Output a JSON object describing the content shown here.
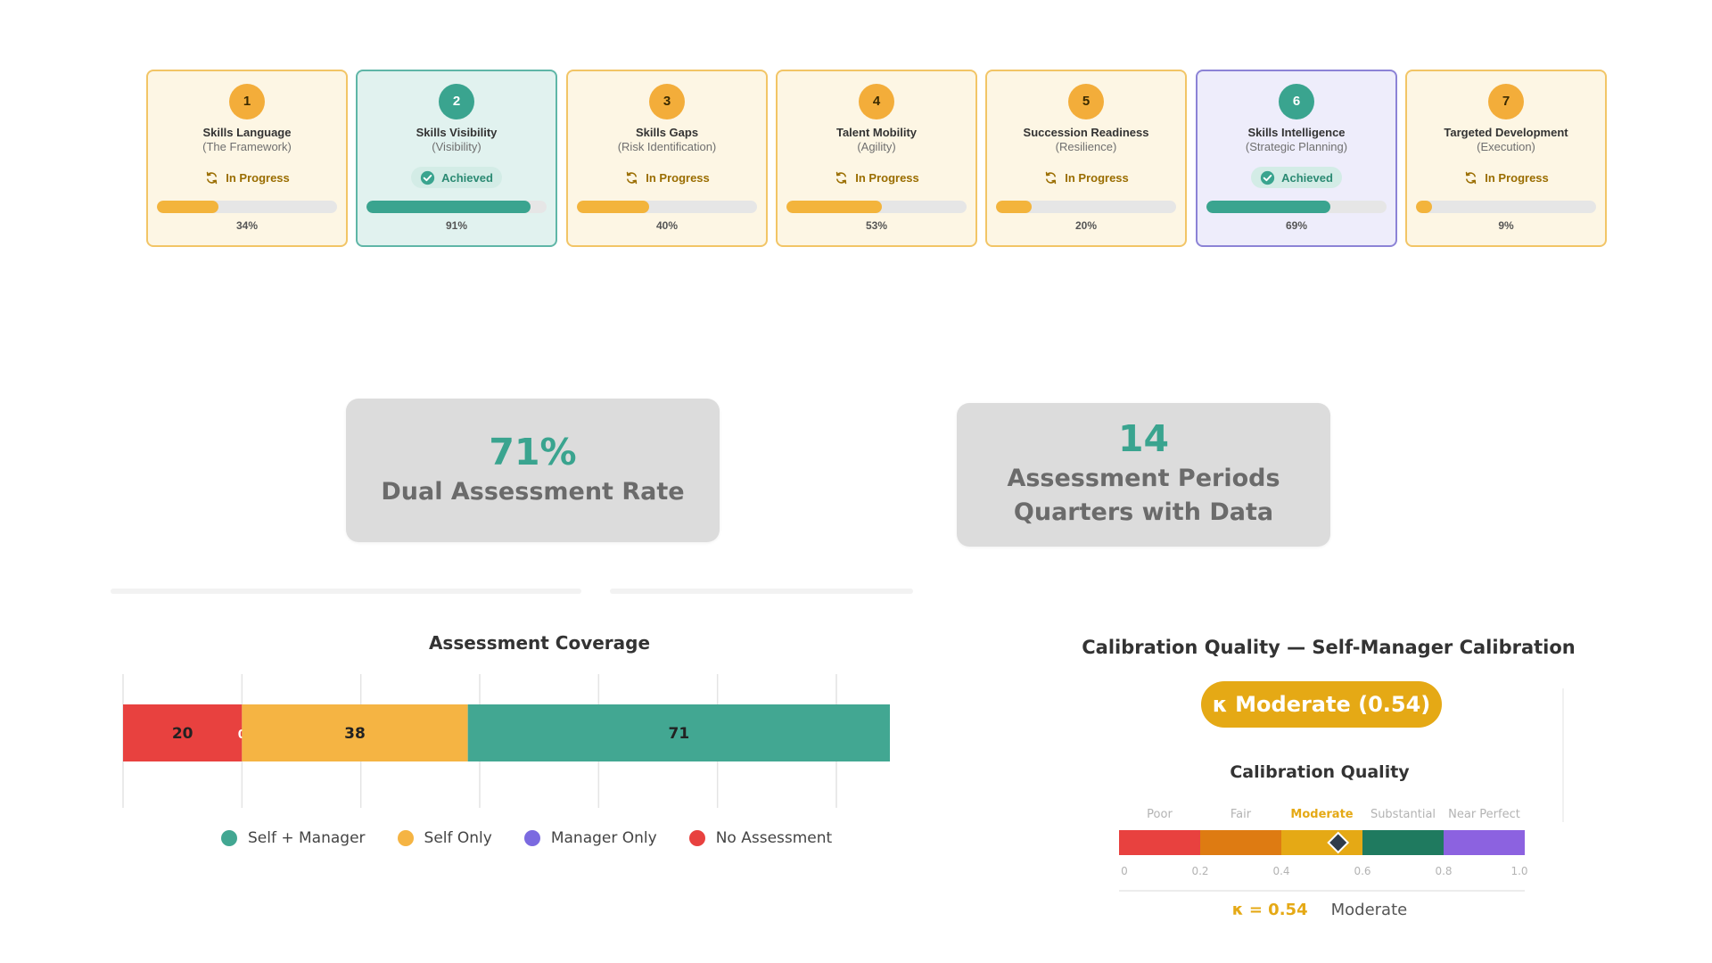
{
  "stages": [
    {
      "number": "1",
      "title": "Skills Language",
      "subtitle": "(The Framework)",
      "status": "In Progress",
      "progress": 34,
      "progress_label": "34%",
      "state": "in-progress"
    },
    {
      "number": "2",
      "title": "Skills Visibility",
      "subtitle": "(Visibility)",
      "status": "Achieved",
      "progress": 91,
      "progress_label": "91%",
      "state": "achieved"
    },
    {
      "number": "3",
      "title": "Skills Gaps",
      "subtitle": "(Risk Identification)",
      "status": "In Progress",
      "progress": 40,
      "progress_label": "40%",
      "state": "in-progress"
    },
    {
      "number": "4",
      "title": "Talent Mobility",
      "subtitle": "(Agility)",
      "status": "In Progress",
      "progress": 53,
      "progress_label": "53%",
      "state": "in-progress"
    },
    {
      "number": "5",
      "title": "Succession Readiness",
      "subtitle": "(Resilience)",
      "status": "In Progress",
      "progress": 20,
      "progress_label": "20%",
      "state": "in-progress"
    },
    {
      "number": "6",
      "title": "Skills Intelligence",
      "subtitle": "(Strategic Planning)",
      "status": "Achieved",
      "progress": 69,
      "progress_label": "69%",
      "state": "achieved-active"
    },
    {
      "number": "7",
      "title": "Targeted Development",
      "subtitle": "(Execution)",
      "status": "In Progress",
      "progress": 9,
      "progress_label": "9%",
      "state": "in-progress"
    }
  ],
  "kpis": {
    "dual_rate": {
      "value": "71%",
      "label": "Dual Assessment Rate"
    },
    "periods": {
      "value": "14",
      "label_line1": "Assessment Periods",
      "label_line2": "Quarters with Data"
    }
  },
  "coverage": {
    "title": "Assessment Coverage",
    "legend": [
      {
        "label": "Self + Manager",
        "color": "#42a792"
      },
      {
        "label": "Self Only",
        "color": "#f5b443"
      },
      {
        "label": "Manager Only",
        "color": "#7b6ae0"
      },
      {
        "label": "No Assessment",
        "color": "#e8413f"
      }
    ],
    "chart_data": {
      "type": "bar",
      "orientation": "horizontal-stacked",
      "series": [
        {
          "name": "No Assessment",
          "value": 20,
          "label": "20",
          "color": "#e8413f"
        },
        {
          "name": "Manager Only",
          "value": 0,
          "label": "0",
          "color": "#7b6ae0"
        },
        {
          "name": "Self Only",
          "value": 38,
          "label": "38",
          "color": "#f5b443"
        },
        {
          "name": "Self + Manager",
          "value": 71,
          "label": "71",
          "color": "#42a792"
        }
      ],
      "xlim": [
        0,
        120
      ],
      "grid_step": 20,
      "grid": true
    }
  },
  "calibration": {
    "title": "Calibration Quality — Self-Manager Calibration",
    "pill": "κ Moderate (0.54)",
    "scale_title": "Calibration Quality",
    "kappa": 0.54,
    "highlight_band": "Moderate",
    "bands": [
      {
        "label": "Poor",
        "from": 0.0,
        "to": 0.2,
        "color": "#e8413f"
      },
      {
        "label": "Fair",
        "from": 0.2,
        "to": 0.4,
        "color": "#de7b12"
      },
      {
        "label": "Moderate",
        "from": 0.4,
        "to": 0.6,
        "color": "#e5a915"
      },
      {
        "label": "Substantial",
        "from": 0.6,
        "to": 0.8,
        "color": "#1f7a5f"
      },
      {
        "label": "Near Perfect",
        "from": 0.8,
        "to": 1.0,
        "color": "#8c62e0"
      }
    ],
    "ticks": [
      "0",
      "0.2",
      "0.4",
      "0.6",
      "0.8",
      "1.0"
    ],
    "summary_kappa": "κ = 0.54",
    "summary_word": "Moderate",
    "colors": {
      "accent": "#e5a915",
      "muted": "#b3b3b3"
    }
  }
}
